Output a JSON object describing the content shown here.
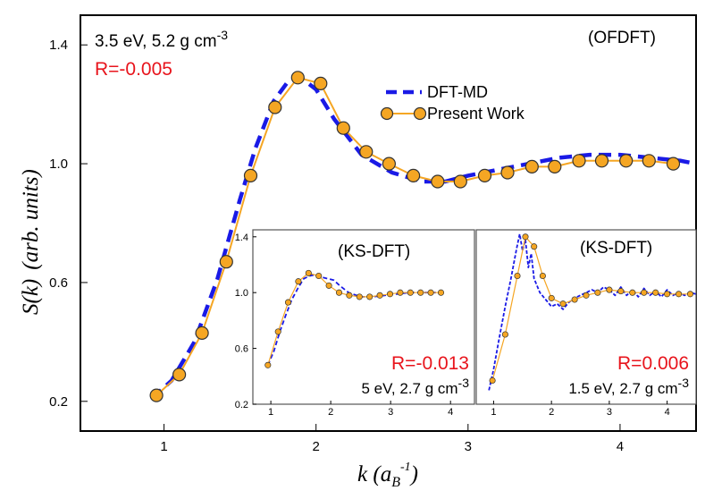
{
  "chart_data": [
    {
      "type": "line",
      "xlim": [
        0.45,
        4.5
      ],
      "ylim": [
        0.1,
        1.5
      ],
      "xticks": [
        1,
        2,
        3,
        4
      ],
      "yticks": [
        0.2,
        0.6,
        1.0,
        1.4
      ],
      "xticklabels": [
        "1",
        "2",
        "3",
        "4"
      ],
      "yticklabels": [
        "0.2",
        "0.6",
        "1.0",
        "1.4"
      ],
      "xlabel": {
        "base": "k",
        "open": " (",
        "sym": "a",
        "sub": "B",
        "sup": "-1",
        "close": ")"
      },
      "ylabel": {
        "main": "S(",
        "k": "k",
        "close": ")",
        "units": "(arb. units)"
      },
      "annotations": {
        "condition_main": "3.5 eV, 5.2 g cm",
        "condition_sup": "-3",
        "r_value": "R=-0.005",
        "method": "(OFDFT)"
      },
      "legend": {
        "position": "upper-middle",
        "entries": [
          "DFT-MD",
          "Present Work"
        ]
      },
      "colors": {
        "dft_md": "#1a1ae6",
        "present": "#f5a623",
        "marker_fill": "#f5a623",
        "r_text": "#e8141c"
      },
      "series": [
        {
          "name": "DFT-MD",
          "style": "dashed",
          "x": [
            0.92,
            1.05,
            1.2,
            1.35,
            1.5,
            1.6,
            1.72,
            1.82,
            1.9,
            2.0,
            2.12,
            2.3,
            2.5,
            2.7,
            2.85,
            3.0,
            3.2,
            3.4,
            3.6,
            3.8,
            4.0,
            4.2,
            4.4,
            4.5
          ],
          "y": [
            0.21,
            0.27,
            0.4,
            0.61,
            0.88,
            1.05,
            1.21,
            1.28,
            1.29,
            1.25,
            1.15,
            1.03,
            0.97,
            0.94,
            0.94,
            0.96,
            0.98,
            1.0,
            1.02,
            1.03,
            1.03,
            1.02,
            1.01,
            1.0
          ]
        },
        {
          "name": "Present Work",
          "style": "solid-with-markers",
          "x": [
            0.95,
            1.1,
            1.25,
            1.41,
            1.57,
            1.73,
            1.88,
            2.03,
            2.18,
            2.33,
            2.48,
            2.64,
            2.8,
            2.95,
            3.11,
            3.26,
            3.42,
            3.57,
            3.73,
            3.88,
            4.04,
            4.19,
            4.35
          ],
          "y": [
            0.22,
            0.29,
            0.43,
            0.67,
            0.96,
            1.19,
            1.29,
            1.27,
            1.12,
            1.04,
            1.0,
            0.96,
            0.94,
            0.94,
            0.96,
            0.97,
            0.99,
            0.99,
            1.01,
            1.01,
            1.01,
            1.01,
            1.0
          ]
        }
      ]
    },
    {
      "type": "line",
      "xlim": [
        0.7,
        4.4
      ],
      "ylim": [
        0.2,
        1.45
      ],
      "xticks": [
        1,
        2,
        3,
        4
      ],
      "yticks": [
        0.2,
        0.6,
        1.0,
        1.4
      ],
      "xticklabels": [
        "1",
        "2",
        "3",
        "4"
      ],
      "yticklabels": [
        "0.2",
        "0.6",
        "1.0",
        "1.4"
      ],
      "annotations": {
        "method": "(KS-DFT)",
        "r_value": "R=-0.013",
        "condition_main": "5 eV, 2.7 g cm",
        "condition_sup": "-3"
      },
      "series": [
        {
          "name": "DFT-MD",
          "style": "dashed",
          "x": [
            0.95,
            1.05,
            1.15,
            1.25,
            1.35,
            1.45,
            1.55,
            1.65,
            1.75,
            1.85,
            1.95,
            2.05,
            2.15,
            2.3,
            2.5,
            2.7,
            2.9,
            3.1,
            3.3,
            3.5,
            3.7,
            3.9
          ],
          "y": [
            0.48,
            0.58,
            0.72,
            0.84,
            0.95,
            1.03,
            1.1,
            1.12,
            1.13,
            1.11,
            1.1,
            1.09,
            1.05,
            1.0,
            0.97,
            0.97,
            0.98,
            0.99,
            1.0,
            1.0,
            1.0,
            1.0
          ]
        },
        {
          "name": "Present Work",
          "style": "solid-with-markers",
          "x": [
            0.95,
            1.12,
            1.29,
            1.46,
            1.63,
            1.8,
            1.97,
            2.14,
            2.31,
            2.48,
            2.65,
            2.82,
            2.99,
            3.16,
            3.33,
            3.5,
            3.67,
            3.84
          ],
          "y": [
            0.48,
            0.72,
            0.93,
            1.08,
            1.14,
            1.12,
            1.05,
            1.0,
            0.98,
            0.97,
            0.97,
            0.98,
            0.99,
            1.0,
            1.0,
            1.0,
            1.0,
            1.0
          ]
        }
      ]
    },
    {
      "type": "line",
      "xlim": [
        0.7,
        4.5
      ],
      "ylim": [
        0.2,
        1.45
      ],
      "xticks": [
        1,
        2,
        3,
        4
      ],
      "yticks": [],
      "xticklabels": [
        "1",
        "2",
        "3",
        "4"
      ],
      "yticklabels": [],
      "annotations": {
        "method": "(KS-DFT)",
        "r_value": "R=0.006",
        "condition_main": "1.5 eV, 2.7 g cm",
        "condition_sup": "-3"
      },
      "series": [
        {
          "name": "DFT-MD",
          "style": "dashed-noisy",
          "x": [
            0.92,
            1.0,
            1.1,
            1.2,
            1.3,
            1.4,
            1.45,
            1.5,
            1.55,
            1.6,
            1.65,
            1.7,
            1.75,
            1.8,
            1.9,
            2.0,
            2.1,
            2.2,
            2.3,
            2.4,
            2.5,
            2.6,
            2.7,
            2.8,
            2.9,
            3.0,
            3.1,
            3.2,
            3.3,
            3.4,
            3.5,
            3.6,
            3.7,
            3.8,
            3.9,
            4.0,
            4.1,
            4.2,
            4.3,
            4.4,
            4.5
          ],
          "y": [
            0.3,
            0.45,
            0.68,
            0.9,
            1.1,
            1.32,
            1.42,
            1.3,
            1.38,
            1.18,
            1.28,
            1.1,
            1.05,
            1.0,
            0.95,
            0.9,
            0.92,
            0.88,
            0.93,
            0.96,
            0.98,
            1.0,
            1.02,
            1.0,
            1.04,
            1.02,
            0.98,
            1.04,
            0.98,
            1.02,
            0.97,
            1.03,
            0.98,
            1.01,
            0.97,
            1.02,
            0.98,
            1.0,
            0.98,
            1.0,
            0.99
          ]
        },
        {
          "name": "Present Work",
          "style": "solid-with-markers",
          "x": [
            0.98,
            1.2,
            1.41,
            1.55,
            1.7,
            1.85,
            2.0,
            2.2,
            2.4,
            2.6,
            2.8,
            3.0,
            3.2,
            3.4,
            3.6,
            3.8,
            4.0,
            4.2,
            4.4
          ],
          "y": [
            0.37,
            0.7,
            1.12,
            1.4,
            1.33,
            1.12,
            0.96,
            0.92,
            0.95,
            0.98,
            1.0,
            1.02,
            1.01,
            1.0,
            1.0,
            1.0,
            0.99,
            0.99,
            0.99
          ]
        }
      ]
    }
  ]
}
